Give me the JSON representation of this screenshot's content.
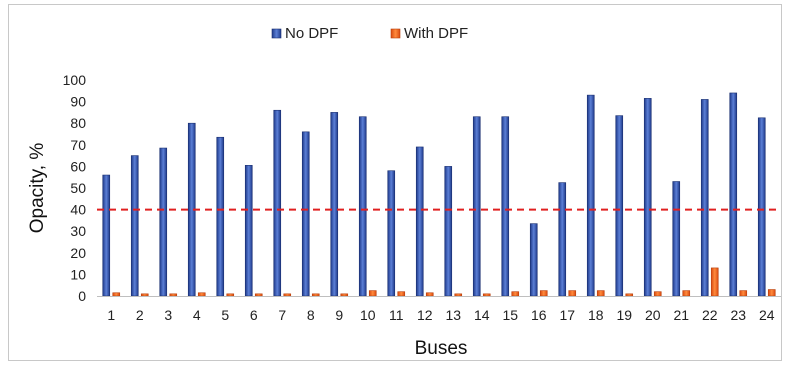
{
  "chart_data": {
    "type": "bar",
    "xlabel": "Buses",
    "ylabel": "Opacity, %",
    "ylim": [
      0,
      100
    ],
    "yticks": [
      0,
      10,
      20,
      30,
      40,
      50,
      60,
      70,
      80,
      90,
      100
    ],
    "categories": [
      "1",
      "2",
      "3",
      "4",
      "5",
      "6",
      "7",
      "8",
      "9",
      "10",
      "11",
      "12",
      "13",
      "14",
      "15",
      "16",
      "17",
      "18",
      "19",
      "20",
      "21",
      "22",
      "23",
      "24"
    ],
    "series": [
      {
        "name": "No DPF",
        "color": "#2e4fa8",
        "values": [
          56,
          65,
          68.5,
          80,
          73.5,
          60.5,
          86,
          76,
          85,
          83,
          58,
          69,
          60,
          83,
          83,
          33.5,
          52.5,
          93,
          83.5,
          91.5,
          53,
          91,
          94,
          82.5
        ]
      },
      {
        "name": "With DPF",
        "color": "#f0641e",
        "values": [
          1.5,
          1,
          1,
          1.5,
          1,
          1,
          1,
          1,
          1,
          2.5,
          2,
          1.5,
          1,
          1,
          2,
          2.5,
          2.5,
          2.5,
          1,
          2,
          2.5,
          13,
          2.5,
          3
        ]
      }
    ],
    "reference_line": {
      "value": 40,
      "color": "#e02020",
      "style": "dashed"
    },
    "legend_position": "top-center",
    "grid": false
  }
}
